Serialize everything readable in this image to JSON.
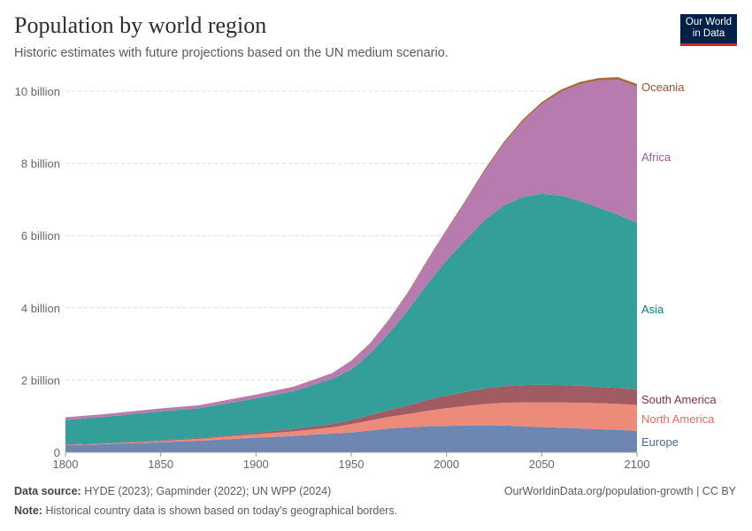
{
  "header": {
    "title": "Population by world region",
    "subtitle": "Historic estimates with future projections based on the UN medium scenario.",
    "logo_text": "Our World in Data"
  },
  "footer": {
    "source_label": "Data source:",
    "source": "HYDE (2023); Gapminder (2022); UN WPP (2024)",
    "url": "OurWorldinData.org/population-growth | CC BY",
    "note_label": "Note:",
    "note": "Historical country data is shown based on today's geographical borders."
  },
  "chart_data": {
    "type": "area",
    "stacked": true,
    "xlim": [
      1800,
      2100
    ],
    "ylim": [
      0,
      10000000000
    ],
    "xticks": [
      1800,
      1850,
      1900,
      1950,
      2000,
      2050,
      2100
    ],
    "xtick_labels": [
      "1800",
      "1850",
      "1900",
      "1950",
      "2000",
      "2050",
      "2100"
    ],
    "yticks": [
      0,
      2000000000,
      4000000000,
      6000000000,
      8000000000,
      10000000000
    ],
    "ytick_labels": [
      "0",
      "2 billion",
      "4 billion",
      "6 billion",
      "8 billion",
      "10 billion"
    ],
    "grid": "horizontal dashed",
    "legend": "right-side inline labels",
    "x": [
      1800,
      1820,
      1850,
      1870,
      1900,
      1920,
      1940,
      1950,
      1960,
      1970,
      1980,
      1990,
      2000,
      2010,
      2020,
      2030,
      2040,
      2050,
      2060,
      2070,
      2080,
      2090,
      2100
    ],
    "series": [
      {
        "name": "Europe",
        "color": "#6d87b0",
        "label_color": "#4c6a9c",
        "values": [
          0.195,
          0.22,
          0.28,
          0.32,
          0.4,
          0.45,
          0.52,
          0.55,
          0.6,
          0.66,
          0.69,
          0.72,
          0.73,
          0.74,
          0.745,
          0.74,
          0.72,
          0.7,
          0.68,
          0.66,
          0.64,
          0.62,
          0.59
        ]
      },
      {
        "name": "North America",
        "color": "#ec8b7a",
        "label_color": "#e56e5a",
        "values": [
          0.01,
          0.015,
          0.03,
          0.05,
          0.1,
          0.13,
          0.17,
          0.23,
          0.28,
          0.32,
          0.37,
          0.43,
          0.49,
          0.54,
          0.59,
          0.63,
          0.66,
          0.68,
          0.7,
          0.71,
          0.72,
          0.72,
          0.72
        ]
      },
      {
        "name": "South America",
        "color": "#a15b63",
        "label_color": "#883039",
        "values": [
          0.01,
          0.012,
          0.02,
          0.025,
          0.04,
          0.06,
          0.09,
          0.11,
          0.15,
          0.19,
          0.24,
          0.3,
          0.35,
          0.39,
          0.43,
          0.46,
          0.48,
          0.49,
          0.48,
          0.47,
          0.45,
          0.44,
          0.43
        ]
      },
      {
        "name": "Asia",
        "color": "#349f98",
        "label_color": "#00847e",
        "values": [
          0.68,
          0.73,
          0.8,
          0.82,
          0.95,
          1.05,
          1.25,
          1.4,
          1.7,
          2.14,
          2.65,
          3.22,
          3.74,
          4.21,
          4.66,
          5.0,
          5.21,
          5.29,
          5.25,
          5.12,
          4.96,
          4.8,
          4.61
        ]
      },
      {
        "name": "Africa",
        "color": "#b77bb0",
        "label_color": "#a2559c",
        "values": [
          0.07,
          0.075,
          0.08,
          0.085,
          0.1,
          0.12,
          0.15,
          0.23,
          0.28,
          0.36,
          0.48,
          0.63,
          0.82,
          1.06,
          1.36,
          1.71,
          2.09,
          2.48,
          2.87,
          3.23,
          3.53,
          3.74,
          3.78
        ]
      },
      {
        "name": "Oceania",
        "color": "#a8693c",
        "label_color": "#9a5129",
        "values": [
          0.002,
          0.002,
          0.002,
          0.003,
          0.006,
          0.009,
          0.011,
          0.013,
          0.016,
          0.019,
          0.023,
          0.027,
          0.031,
          0.037,
          0.043,
          0.048,
          0.053,
          0.057,
          0.061,
          0.064,
          0.066,
          0.068,
          0.069
        ]
      }
    ],
    "value_unit_multiplier": 1000000000
  }
}
